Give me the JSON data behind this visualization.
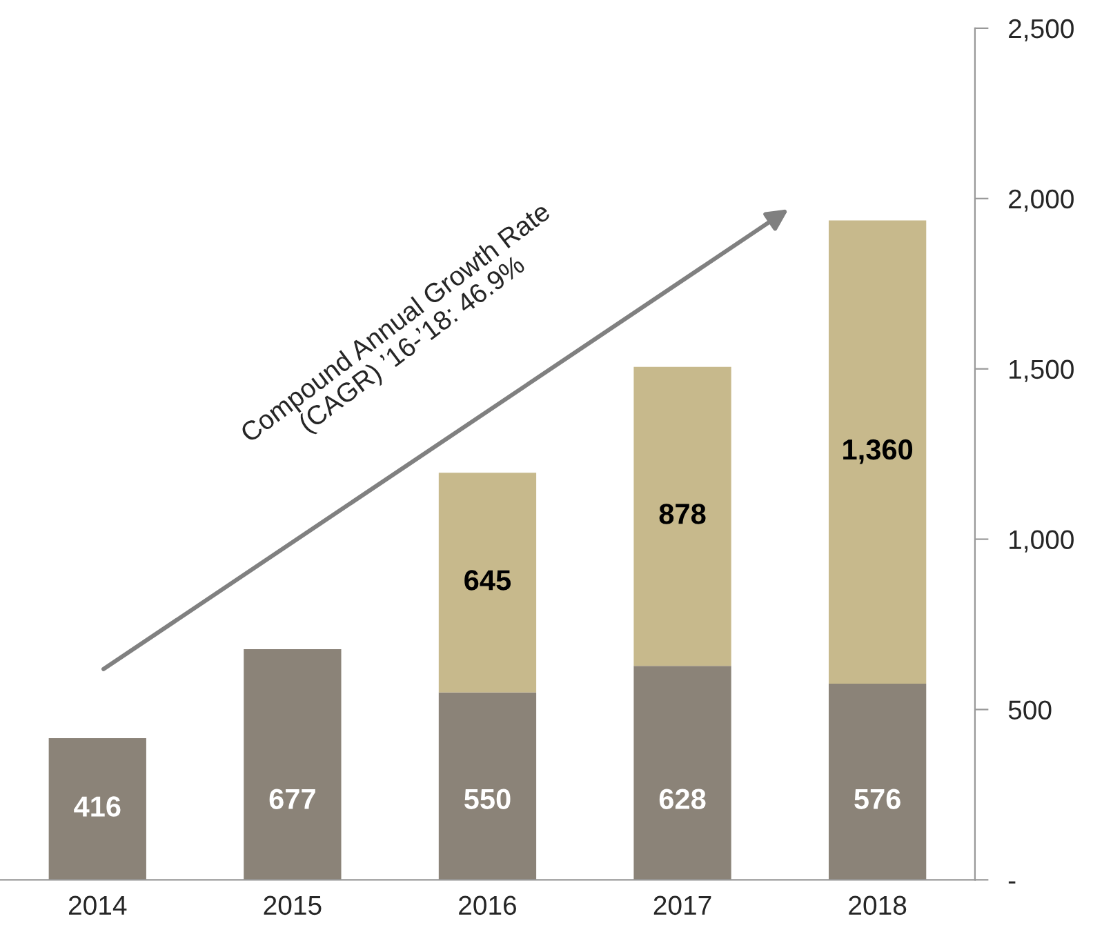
{
  "chart_data": {
    "type": "bar",
    "stacked": true,
    "categories": [
      "2014",
      "2015",
      "2016",
      "2017",
      "2018"
    ],
    "series": [
      {
        "color": "#8b8378",
        "values": [
          416,
          677,
          550,
          628,
          576
        ],
        "value_labels": [
          "416",
          "677",
          "550",
          "628",
          "576"
        ]
      },
      {
        "color": "#c7b98c",
        "values": [
          null,
          null,
          645,
          878,
          1360
        ],
        "value_labels": [
          null,
          null,
          "645",
          "878",
          "1,360"
        ]
      }
    ],
    "ylim": [
      0,
      2500
    ],
    "yticks": [
      {
        "value": 0,
        "label": "-"
      },
      500,
      {
        "value": 1000,
        "label": "1,000"
      },
      {
        "value": 1500,
        "label": "1,500"
      },
      {
        "value": 2000,
        "label": "2,000"
      },
      {
        "value": 2500,
        "label": "2,500"
      }
    ],
    "grid": false,
    "legend": false,
    "annotations": [
      "Compound Annual Growth Rate\n(CAGR) ’16-’18: 46.9%"
    ]
  }
}
